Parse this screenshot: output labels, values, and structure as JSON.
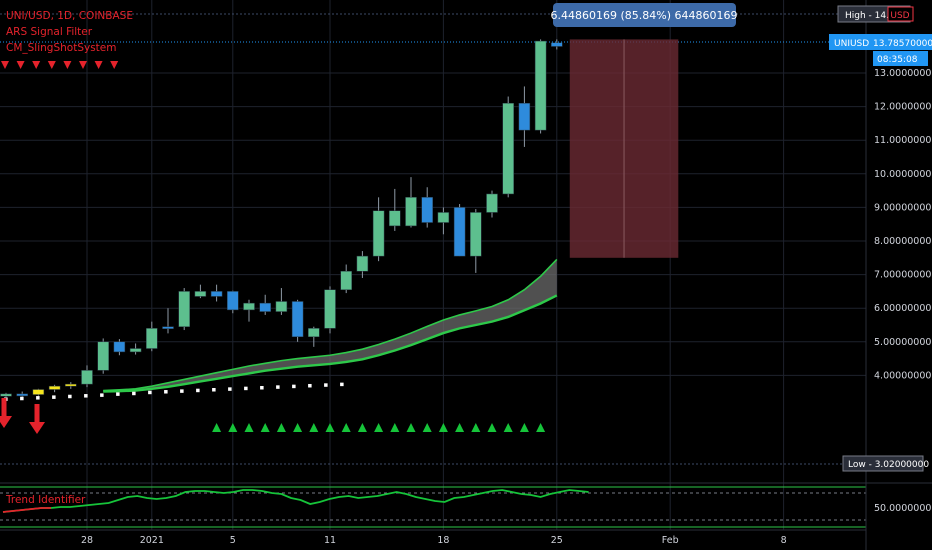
{
  "chart_data": {
    "type": "candlestick",
    "symbol_header": "UNI/USD, 1D, COINBASE",
    "indicators": [
      "ARS Signal Filter",
      "CM_SlingShotSystem"
    ],
    "oscillator_label": "Trend Identifier",
    "oscillator_value": "50.00000000",
    "measure_label": "6.44860169 (85.84%) 644860169",
    "high_label": "High - 14.0000",
    "high_currency": "USD",
    "price_symbol": "UNIUSD",
    "last_price": "13.78570000",
    "countdown": "08:35:08",
    "low_label": "Low - 3.02000000",
    "price_ticks": [
      "13.00000000",
      "12.00000000",
      "11.00000000",
      "10.00000000",
      "9.00000000",
      "8.00000000",
      "7.00000000",
      "6.00000000",
      "5.00000000",
      "4.00000000"
    ],
    "price_tick_values": [
      13,
      12,
      11,
      10,
      9,
      8,
      7,
      6,
      5,
      4
    ],
    "time_ticks": [
      "28",
      "2021",
      "5",
      "11",
      "18",
      "25",
      "Feb",
      "8"
    ],
    "time_tick_index": [
      0,
      4,
      9,
      15,
      22,
      29,
      36,
      43
    ],
    "first_day": 24,
    "ylim": [
      3.0,
      14.1
    ],
    "colors": {
      "up": "#5dbf8e",
      "down": "#2e8bdc",
      "yellow": "#f5e51d",
      "cyan": "#19e6f2",
      "red": "#e5232c",
      "green": "#16c43a"
    },
    "candles": [
      {
        "d": 21,
        "o": 3.72,
        "h": 3.82,
        "l": 3.4,
        "c": 3.45,
        "color": "cyan"
      },
      {
        "d": 22,
        "o": 3.46,
        "h": 3.55,
        "l": 3.35,
        "c": 3.38,
        "color": "yellow"
      },
      {
        "d": 23,
        "o": 3.38,
        "h": 3.48,
        "l": 3.3,
        "c": 3.45,
        "color": "up"
      },
      {
        "d": 24,
        "o": 3.45,
        "h": 3.52,
        "l": 3.37,
        "c": 3.43,
        "color": "down"
      },
      {
        "d": 25,
        "o": 3.43,
        "h": 3.6,
        "l": 3.4,
        "c": 3.58,
        "color": "yellow"
      },
      {
        "d": 26,
        "o": 3.58,
        "h": 3.72,
        "l": 3.5,
        "c": 3.68,
        "color": "yellow"
      },
      {
        "d": 27,
        "o": 3.68,
        "h": 3.8,
        "l": 3.6,
        "c": 3.74,
        "color": "yellow"
      },
      {
        "d": 28,
        "o": 3.74,
        "h": 4.3,
        "l": 3.65,
        "c": 4.15,
        "color": "up"
      },
      {
        "d": 29,
        "o": 4.15,
        "h": 5.1,
        "l": 4.05,
        "c": 5.0,
        "color": "up"
      },
      {
        "d": 30,
        "o": 5.0,
        "h": 5.08,
        "l": 4.6,
        "c": 4.7,
        "color": "down"
      },
      {
        "d": 31,
        "o": 4.7,
        "h": 4.95,
        "l": 4.62,
        "c": 4.8,
        "color": "up"
      },
      {
        "d": 32,
        "o": 4.8,
        "h": 5.6,
        "l": 4.72,
        "c": 5.4,
        "color": "up"
      },
      {
        "d": 33,
        "o": 5.4,
        "h": 6.0,
        "l": 5.25,
        "c": 5.45,
        "color": "down"
      },
      {
        "d": 34,
        "o": 5.45,
        "h": 6.6,
        "l": 5.35,
        "c": 6.5,
        "color": "up"
      },
      {
        "d": 35,
        "o": 6.5,
        "h": 6.7,
        "l": 6.3,
        "c": 6.35,
        "color": "up"
      },
      {
        "d": 36,
        "o": 6.35,
        "h": 6.7,
        "l": 6.2,
        "c": 6.5,
        "color": "down"
      },
      {
        "d": 37,
        "o": 6.5,
        "h": 6.52,
        "l": 5.85,
        "c": 5.95,
        "color": "down"
      },
      {
        "d": 38,
        "o": 5.95,
        "h": 6.25,
        "l": 5.6,
        "c": 6.15,
        "color": "up"
      },
      {
        "d": 39,
        "o": 6.15,
        "h": 6.4,
        "l": 5.8,
        "c": 5.9,
        "color": "down"
      },
      {
        "d": 40,
        "o": 5.9,
        "h": 6.6,
        "l": 5.8,
        "c": 6.2,
        "color": "up"
      },
      {
        "d": 41,
        "o": 6.2,
        "h": 6.25,
        "l": 5.0,
        "c": 5.15,
        "color": "down"
      },
      {
        "d": 42,
        "o": 5.15,
        "h": 5.45,
        "l": 4.85,
        "c": 5.4,
        "color": "up"
      },
      {
        "d": 43,
        "o": 5.4,
        "h": 6.65,
        "l": 5.25,
        "c": 6.55,
        "color": "up"
      },
      {
        "d": 44,
        "o": 6.55,
        "h": 7.3,
        "l": 6.45,
        "c": 7.1,
        "color": "up"
      },
      {
        "d": 45,
        "o": 7.1,
        "h": 7.7,
        "l": 6.9,
        "c": 7.55,
        "color": "up"
      },
      {
        "d": 46,
        "o": 7.55,
        "h": 9.3,
        "l": 7.4,
        "c": 8.9,
        "color": "up"
      },
      {
        "d": 47,
        "o": 8.9,
        "h": 9.55,
        "l": 8.3,
        "c": 8.45,
        "color": "up"
      },
      {
        "d": 48,
        "o": 8.45,
        "h": 9.9,
        "l": 8.4,
        "c": 9.3,
        "color": "up"
      },
      {
        "d": 49,
        "o": 9.3,
        "h": 9.6,
        "l": 8.4,
        "c": 8.55,
        "color": "down"
      },
      {
        "d": 50,
        "o": 8.55,
        "h": 9.0,
        "l": 8.2,
        "c": 8.85,
        "color": "up"
      },
      {
        "d": 51,
        "o": 9.0,
        "h": 9.1,
        "l": 7.55,
        "c": 7.55,
        "color": "down"
      },
      {
        "d": 52,
        "o": 7.55,
        "h": 8.95,
        "l": 7.05,
        "c": 8.85,
        "color": "up"
      },
      {
        "d": 53,
        "o": 8.85,
        "h": 9.5,
        "l": 8.7,
        "c": 9.4,
        "color": "up"
      },
      {
        "d": 54,
        "o": 9.4,
        "h": 12.3,
        "l": 9.3,
        "c": 12.1,
        "color": "up"
      },
      {
        "d": 55,
        "o": 12.1,
        "h": 12.6,
        "l": 10.8,
        "c": 11.3,
        "color": "down"
      },
      {
        "d": 56,
        "o": 11.3,
        "h": 14.0,
        "l": 11.2,
        "c": 13.95,
        "color": "up"
      },
      {
        "d": 57,
        "o": 13.9,
        "h": 14.0,
        "l": 13.7,
        "c": 13.79,
        "color": "down"
      }
    ],
    "band_upper": [
      3.55,
      3.57,
      3.6,
      3.68,
      3.78,
      3.88,
      3.98,
      4.08,
      4.18,
      4.28,
      4.36,
      4.44,
      4.5,
      4.55,
      4.6,
      4.68,
      4.78,
      4.92,
      5.08,
      5.26,
      5.46,
      5.65,
      5.8,
      5.92,
      6.05,
      6.25,
      6.55,
      6.95,
      7.45
    ],
    "band_lower": [
      3.52,
      3.53,
      3.55,
      3.6,
      3.66,
      3.74,
      3.82,
      3.9,
      3.98,
      4.06,
      4.14,
      4.2,
      4.26,
      4.3,
      4.34,
      4.4,
      4.48,
      4.6,
      4.74,
      4.9,
      5.08,
      5.26,
      5.4,
      5.5,
      5.6,
      5.74,
      5.94,
      6.14,
      6.38
    ],
    "band_start_day": 29,
    "measure_box": {
      "d_start": 57.8,
      "d_end": 64.5,
      "top": 14.0,
      "bottom": 7.5
    }
  }
}
